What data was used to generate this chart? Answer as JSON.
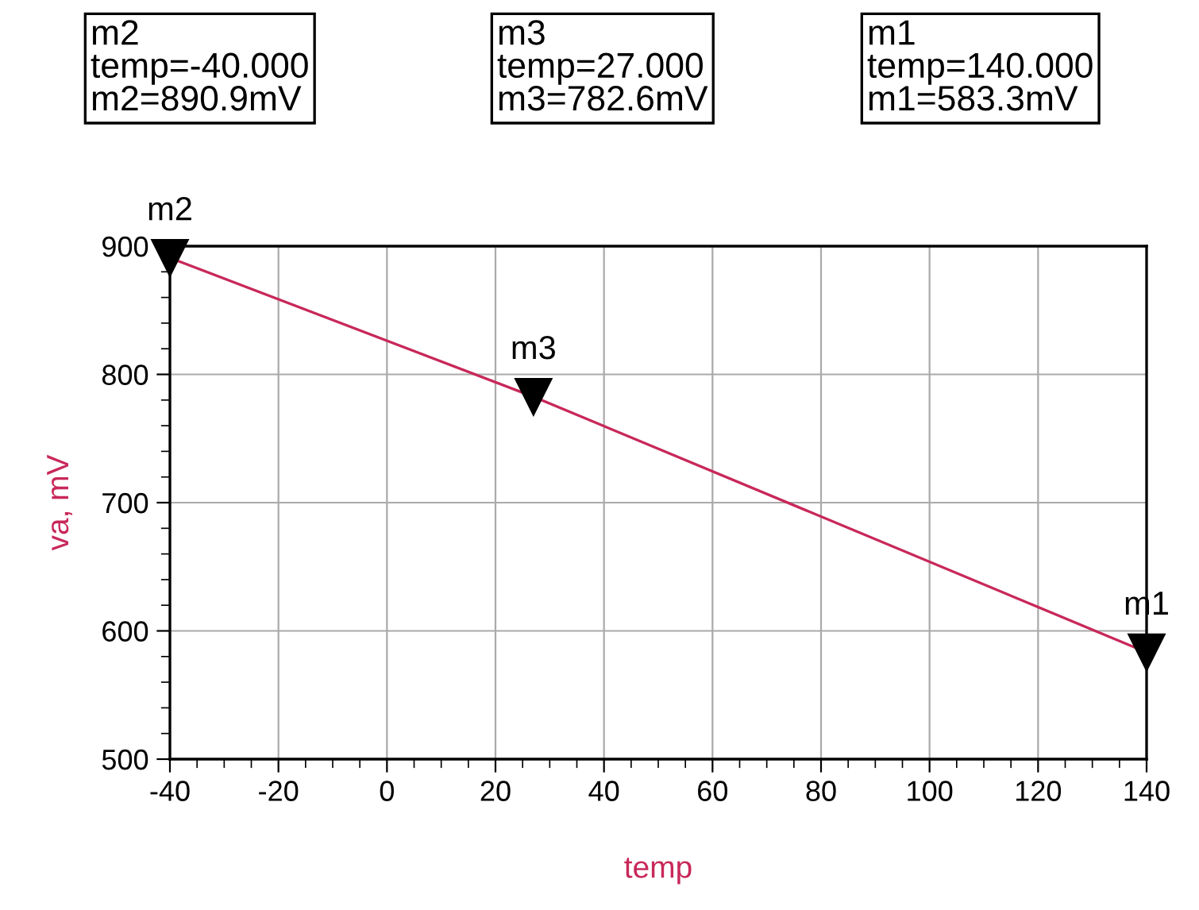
{
  "chart_data": {
    "type": "line",
    "xlabel": "temp",
    "ylabel": "va, mV",
    "x": [
      -40,
      27,
      140
    ],
    "series": [
      {
        "color": "#c8285a",
        "values": [
          890.9,
          782.6,
          583.3
        ]
      }
    ],
    "xlim": [
      -40,
      140
    ],
    "xticks": [
      -40,
      -20,
      0,
      20,
      40,
      60,
      80,
      100,
      120,
      140
    ],
    "ylim": [
      500,
      900
    ],
    "yticks": [
      500,
      600,
      700,
      800,
      900
    ],
    "grid": true,
    "marker": "triangle",
    "line_style": "solid",
    "annotations": [
      {
        "text": "m2",
        "x": -40,
        "y": 890.9
      },
      {
        "text": "m3",
        "x": 27,
        "y": 782.6
      },
      {
        "text": "m1",
        "x": 140,
        "y": 583.3
      },
      "m2\ntemp=-40.000\nm2=890.9mV",
      "m3\ntemp=27.000\nm3=782.6mV",
      "m1\ntemp=140.000\nm1=583.3mV"
    ]
  }
}
